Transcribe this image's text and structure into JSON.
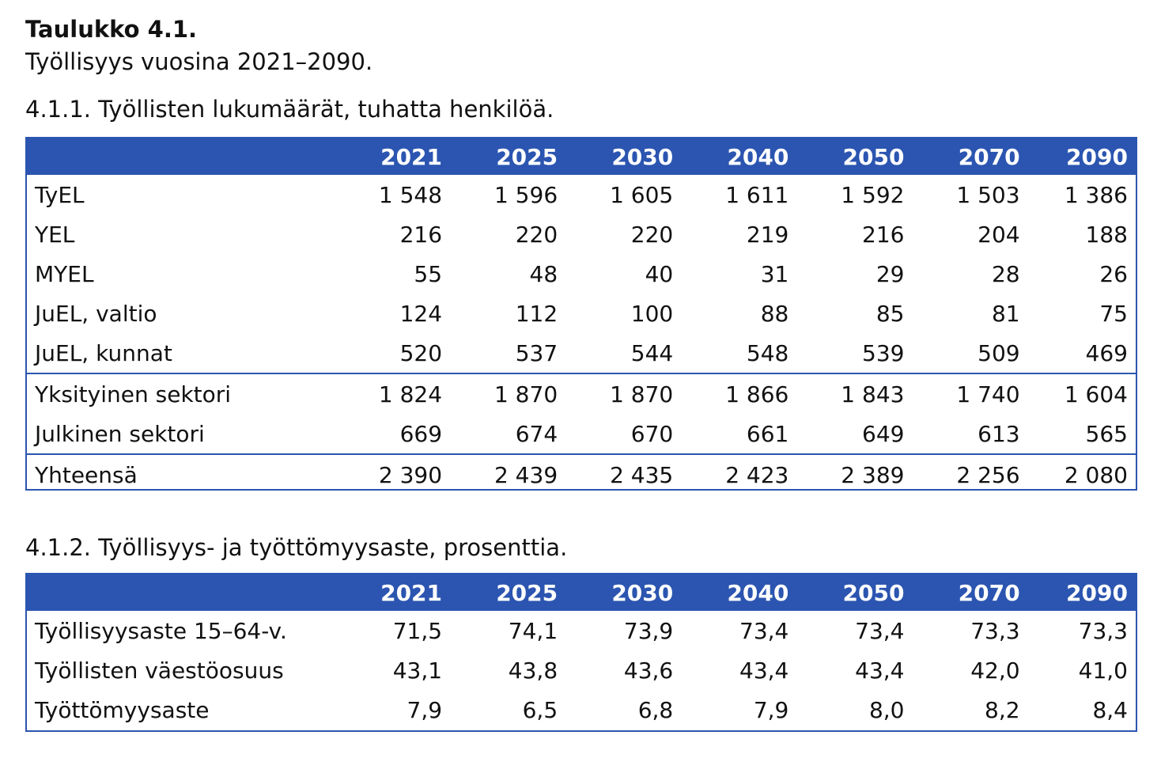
{
  "title": "Taulukko 4.1.",
  "subtitle": "Työllisyys vuosina 2021–2090.",
  "table1": {
    "heading": "4.1.1. Työllisten lukumäärät, tuhatta henkilöä.",
    "years": [
      "2021",
      "2025",
      "2030",
      "2040",
      "2050",
      "2070",
      "2090"
    ],
    "rows": [
      {
        "label": "TyEL",
        "values": [
          "1 548",
          "1 596",
          "1 605",
          "1 611",
          "1 592",
          "1 503",
          "1 386"
        ]
      },
      {
        "label": "YEL",
        "values": [
          "216",
          "220",
          "220",
          "219",
          "216",
          "204",
          "188"
        ]
      },
      {
        "label": "MYEL",
        "values": [
          "55",
          "48",
          "40",
          "31",
          "29",
          "28",
          "26"
        ]
      },
      {
        "label": "JuEL, valtio",
        "values": [
          "124",
          "112",
          "100",
          "88",
          "85",
          "81",
          "75"
        ]
      },
      {
        "label": "JuEL, kunnat",
        "values": [
          "520",
          "537",
          "544",
          "548",
          "539",
          "509",
          "469"
        ]
      },
      {
        "label": "Yksityinen sektori",
        "values": [
          "1 824",
          "1 870",
          "1 870",
          "1 866",
          "1 843",
          "1 740",
          "1 604"
        ]
      },
      {
        "label": "Julkinen sektori",
        "values": [
          "669",
          "674",
          "670",
          "661",
          "649",
          "613",
          "565"
        ]
      },
      {
        "label": "Yhteensä",
        "values": [
          "2 390",
          "2 439",
          "2 435",
          "2 423",
          "2 389",
          "2 256",
          "2 080"
        ]
      }
    ]
  },
  "table2": {
    "heading": "4.1.2. Työllisyys- ja työttömyysaste, prosenttia.",
    "years": [
      "2021",
      "2025",
      "2030",
      "2040",
      "2050",
      "2070",
      "2090"
    ],
    "rows": [
      {
        "label": "Työllisyysaste 15–64-v.",
        "values": [
          "71,5",
          "74,1",
          "73,9",
          "73,4",
          "73,4",
          "73,3",
          "73,3"
        ]
      },
      {
        "label": "Työllisten väestöosuus",
        "values": [
          "43,1",
          "43,8",
          "43,6",
          "43,4",
          "43,4",
          "42,0",
          "41,0"
        ]
      },
      {
        "label": "Työttömyysaste",
        "values": [
          "7,9",
          "6,5",
          "6,8",
          "7,9",
          "8,0",
          "8,2",
          "8,4"
        ]
      }
    ]
  },
  "colors": {
    "header_bg": "#2b55b0",
    "header_text": "#ffffff",
    "border": "#2b55b0"
  }
}
